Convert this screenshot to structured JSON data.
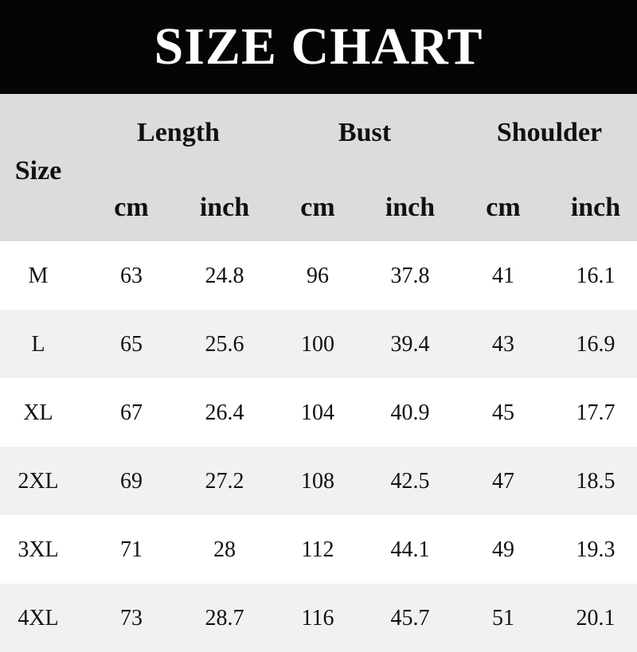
{
  "title": "SIZE CHART",
  "header": {
    "size": "Size",
    "groups": [
      "Length",
      "Bust",
      "Shoulder"
    ],
    "units": [
      "cm",
      "inch",
      "cm",
      "inch",
      "cm",
      "inch"
    ]
  },
  "rows": [
    [
      "M",
      "63",
      "24.8",
      "96",
      "37.8",
      "41",
      "16.1"
    ],
    [
      "L",
      "65",
      "25.6",
      "100",
      "39.4",
      "43",
      "16.9"
    ],
    [
      "XL",
      "67",
      "26.4",
      "104",
      "40.9",
      "45",
      "17.7"
    ],
    [
      "2XL",
      "69",
      "27.2",
      "108",
      "42.5",
      "47",
      "18.5"
    ],
    [
      "3XL",
      "71",
      "28",
      "112",
      "44.1",
      "49",
      "19.3"
    ],
    [
      "4XL",
      "73",
      "28.7",
      "116",
      "45.7",
      "51",
      "20.1"
    ]
  ]
}
